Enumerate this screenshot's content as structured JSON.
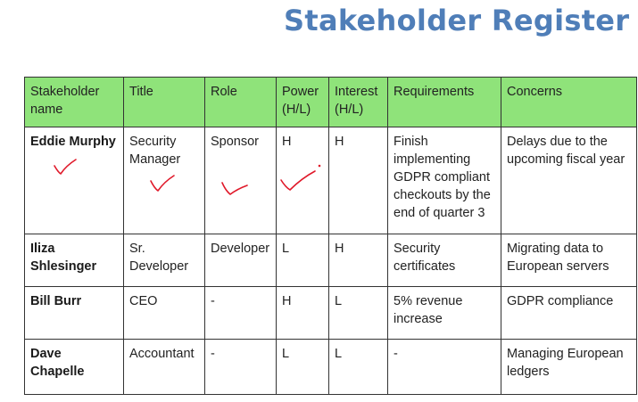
{
  "title": "Stakeholder Register",
  "table": {
    "headers": [
      "Stakeholder name",
      "Title",
      "Role",
      "Power (H/L)",
      "Interest (H/L)",
      "Requirements",
      "Concerns"
    ],
    "rows": [
      [
        "Eddie Murphy",
        "Security Manager",
        "Sponsor",
        "H",
        "H",
        "Finish implementing GDPR compliant checkouts by the end of quarter 3",
        "Delays due to the upcoming fiscal year"
      ],
      [
        "Iliza Shlesinger",
        "Sr. Developer",
        "Developer",
        "L",
        "H",
        "Security certificates",
        "Migrating data to European servers"
      ],
      [
        "Bill Burr",
        "CEO",
        "-",
        "H",
        "L",
        "5% revenue increase",
        "GDPR compliance"
      ],
      [
        "Dave Chapelle",
        "Accountant",
        "-",
        "L",
        "L",
        "-",
        "Managing European ledgers"
      ]
    ]
  },
  "annotations": {
    "mark_icon": "red-handwritten-checkmark-icon",
    "mark_color": "#e0192a"
  }
}
